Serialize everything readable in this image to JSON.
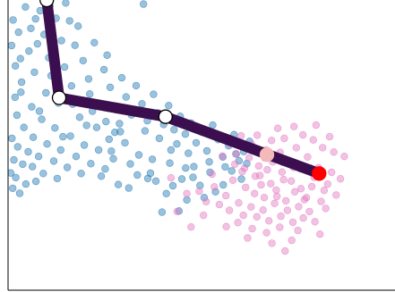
{
  "chart_data": {
    "type": "scatter",
    "title": "",
    "xlabel": "",
    "ylabel": "",
    "grid": false,
    "xlim": [
      0,
      100
    ],
    "ylim": [
      0,
      100
    ],
    "series": [
      {
        "kind": "scatter",
        "color": "#1f77b4",
        "opacity": 0.45,
        "points": [
          [
            1.3,
            93.1
          ],
          [
            2.7,
            88.9
          ],
          [
            0.9,
            84.3
          ],
          [
            4.5,
            97.6
          ],
          [
            3.2,
            79.8
          ],
          [
            5.9,
            90.2
          ],
          [
            7.6,
            84.9
          ],
          [
            8.3,
            96.3
          ],
          [
            6.8,
            75.1
          ],
          [
            3.5,
            71.7
          ],
          [
            1.8,
            66.5
          ],
          [
            9.3,
            88.1
          ],
          [
            10.5,
            80.1
          ],
          [
            12.4,
            93.7
          ],
          [
            11.1,
            73.9
          ],
          [
            13.8,
            86.0
          ],
          [
            9.8,
            68.0
          ],
          [
            6.1,
            63.2
          ],
          [
            2.3,
            60.3
          ],
          [
            14.6,
            76.9
          ],
          [
            15.9,
            92.8
          ],
          [
            17.3,
            84.4
          ],
          [
            16.4,
            70.4
          ],
          [
            19.4,
            79.1
          ],
          [
            18.1,
            91.0
          ],
          [
            20.8,
            72.8
          ],
          [
            13.0,
            64.5
          ],
          [
            8.7,
            58.9
          ],
          [
            4.1,
            56.1
          ],
          [
            1.0,
            52.3
          ],
          [
            22.3,
            85.3
          ],
          [
            21.1,
            67.6
          ],
          [
            24.8,
            76.0
          ],
          [
            23.8,
            63.4
          ],
          [
            26.4,
            69.9
          ],
          [
            25.6,
            81.0
          ],
          [
            27.9,
            62.2
          ],
          [
            18.5,
            59.6
          ],
          [
            12.1,
            55.9
          ],
          [
            6.5,
            52.7
          ],
          [
            2.5,
            49.4
          ],
          [
            29.4,
            73.2
          ],
          [
            30.5,
            66.6
          ],
          [
            31.9,
            60.4
          ],
          [
            33.1,
            70.5
          ],
          [
            28.8,
            57.4
          ],
          [
            34.6,
            64.2
          ],
          [
            22.9,
            56.1
          ],
          [
            16.1,
            53.1
          ],
          [
            10.1,
            50.4
          ],
          [
            5.2,
            47.7
          ],
          [
            1.5,
            44.9
          ],
          [
            36.0,
            58.4
          ],
          [
            37.6,
            67.5
          ],
          [
            38.7,
            61.1
          ],
          [
            35.4,
            54.9
          ],
          [
            40.2,
            57.1
          ],
          [
            41.5,
            63.6
          ],
          [
            26.1,
            52.0
          ],
          [
            19.7,
            50.0
          ],
          [
            13.6,
            48.3
          ],
          [
            7.9,
            46.1
          ],
          [
            3.8,
            43.4
          ],
          [
            0.7,
            40.4
          ],
          [
            42.9,
            55.3
          ],
          [
            44.5,
            59.9
          ],
          [
            45.8,
            53.8
          ],
          [
            39.1,
            52.3
          ],
          [
            47.3,
            57.6
          ],
          [
            48.6,
            50.8
          ],
          [
            30.2,
            50.8
          ],
          [
            23.4,
            48.3
          ],
          [
            17.6,
            46.1
          ],
          [
            11.8,
            44.5
          ],
          [
            6.3,
            42.6
          ],
          [
            2.0,
            38.8
          ],
          [
            50.1,
            54.5
          ],
          [
            51.4,
            48.0
          ],
          [
            52.9,
            56.9
          ],
          [
            46.6,
            47.2
          ],
          [
            54.3,
            51.9
          ],
          [
            55.5,
            45.9
          ],
          [
            33.8,
            46.6
          ],
          [
            27.2,
            45.3
          ],
          [
            21.4,
            43.6
          ],
          [
            15.3,
            42.3
          ],
          [
            9.1,
            40.2
          ],
          [
            4.6,
            36.6
          ],
          [
            1.2,
            35.1
          ],
          [
            57.0,
            49.8
          ],
          [
            58.4,
            53.6
          ],
          [
            59.7,
            44.6
          ],
          [
            56.1,
            42.5
          ],
          [
            60.9,
            47.8
          ],
          [
            37.3,
            45.1
          ],
          [
            31.6,
            43.5
          ],
          [
            25.1,
            41.8
          ],
          [
            18.9,
            40.2
          ],
          [
            12.7,
            38.5
          ],
          [
            7.2,
            37.5
          ],
          [
            3.0,
            33.4
          ],
          [
            62.4,
            51.3
          ],
          [
            42.1,
            48.3
          ],
          [
            36.8,
            40.3
          ],
          [
            14.2,
            52.9
          ],
          [
            20.3,
            56.8
          ],
          [
            8.1,
            61.7
          ],
          [
            3.3,
            68.2
          ],
          [
            5.4,
            82.4
          ],
          [
            7.1,
            93.5
          ],
          [
            10.8,
            98.1
          ],
          [
            14.9,
            99.0
          ],
          [
            1.9,
            77.3
          ],
          [
            16.7,
            64.1
          ],
          [
            25.3,
            58.1
          ],
          [
            29.0,
            54.6
          ],
          [
            43.6,
            50.4
          ],
          [
            48.0,
            42.6
          ],
          [
            52.2,
            40.6
          ],
          [
            44.9,
            38.3
          ],
          [
            38.2,
            37.6
          ],
          [
            28.5,
            36.4
          ],
          [
            57.8,
            41.1
          ],
          [
            49.6,
            36.1
          ],
          [
            40.9,
            33.3
          ],
          [
            33.4,
            39.7
          ],
          [
            46.2,
            31.1
          ],
          [
            53.6,
            33.9
          ],
          [
            60.3,
            38.3
          ],
          [
            41.8,
            43.8
          ],
          [
            39.8,
            26.9
          ],
          [
            36.1,
            38.5
          ],
          [
            27.6,
            54.4
          ],
          [
            21.8,
            61.7
          ],
          [
            35.0,
            98.6
          ],
          [
            45.9,
            42.1
          ],
          [
            31.2,
            35.2
          ],
          [
            26.7,
            47.9
          ],
          [
            24.1,
            39.3
          ],
          [
            52.0,
            44.2
          ],
          [
            58.9,
            47.0
          ],
          [
            47.8,
            38.9
          ],
          [
            42.6,
            36.0
          ],
          [
            55.6,
            36.3
          ],
          [
            50.7,
            31.9
          ],
          [
            61.7,
            43.6
          ],
          [
            44.2,
            27.3
          ]
        ]
      },
      {
        "kind": "scatter",
        "color": "#e377c2",
        "opacity": 0.45,
        "points": [
          [
            55.4,
            46.2
          ],
          [
            58.6,
            43.4
          ],
          [
            62.3,
            45.6
          ],
          [
            60.5,
            40.9
          ],
          [
            64.8,
            42.8
          ],
          [
            66.7,
            48.3
          ],
          [
            68.4,
            44.2
          ],
          [
            70.3,
            47.5
          ],
          [
            72.6,
            43.9
          ],
          [
            74.5,
            49.1
          ],
          [
            65.1,
            39.5
          ],
          [
            67.9,
            36.7
          ],
          [
            70.8,
            40.7
          ],
          [
            73.2,
            37.6
          ],
          [
            75.6,
            41.8
          ],
          [
            77.4,
            45.9
          ],
          [
            79.1,
            38.9
          ],
          [
            61.4,
            35.4
          ],
          [
            63.7,
            33.3
          ],
          [
            66.2,
            31.9
          ],
          [
            69.3,
            34.5
          ],
          [
            71.8,
            30.8
          ],
          [
            74.1,
            33.9
          ],
          [
            76.6,
            31.2
          ],
          [
            78.5,
            35.7
          ],
          [
            80.2,
            42.2
          ],
          [
            81.7,
            34.4
          ],
          [
            58.1,
            37.9
          ],
          [
            56.3,
            32.6
          ],
          [
            59.6,
            30.1
          ],
          [
            62.8,
            28.7
          ],
          [
            65.9,
            27.6
          ],
          [
            68.9,
            29.9
          ],
          [
            72.2,
            27.5
          ],
          [
            75.1,
            28.8
          ],
          [
            77.9,
            27.1
          ],
          [
            80.9,
            30.6
          ],
          [
            82.6,
            36.6
          ],
          [
            83.6,
            40.6
          ],
          [
            54.6,
            29.5
          ],
          [
            57.2,
            27.5
          ],
          [
            60.8,
            25.8
          ],
          [
            64.3,
            25.3
          ],
          [
            67.4,
            23.9
          ],
          [
            70.5,
            25.5
          ],
          [
            73.6,
            23.4
          ],
          [
            76.3,
            24.9
          ],
          [
            79.3,
            23.6
          ],
          [
            82.1,
            28.2
          ],
          [
            84.8,
            32.8
          ],
          [
            85.9,
            38.4
          ],
          [
            53.3,
            35.6
          ],
          [
            51.2,
            30.5
          ],
          [
            49.4,
            34.1
          ],
          [
            63.1,
            21.2
          ],
          [
            66.8,
            19.8
          ],
          [
            70.2,
            21.7
          ],
          [
            74.9,
            20.6
          ],
          [
            73.3,
            17.2
          ],
          [
            80.6,
            19.3
          ],
          [
            56.4,
            21.9
          ],
          [
            59.4,
            23.3
          ],
          [
            61.9,
            18.0
          ],
          [
            68.2,
            16.2
          ],
          [
            71.6,
            13.5
          ],
          [
            47.3,
            21.8
          ],
          [
            43.7,
            27.1
          ],
          [
            50.5,
            25.8
          ],
          [
            46.2,
            33.3
          ],
          [
            42.1,
            38.7
          ],
          [
            52.7,
            40.0
          ],
          [
            57.4,
            50.4
          ],
          [
            62.9,
            50.3
          ],
          [
            68.1,
            51.6
          ],
          [
            71.4,
            52.3
          ],
          [
            76.2,
            53.5
          ],
          [
            78.9,
            51.8
          ],
          [
            81.3,
            49.1
          ],
          [
            84.2,
            47.6
          ],
          [
            86.9,
            46.1
          ],
          [
            69.7,
            55.8
          ],
          [
            73.9,
            56.4
          ],
          [
            79.6,
            56.9
          ],
          [
            83.1,
            52.9
          ],
          [
            64.4,
            53.4
          ],
          [
            60.2,
            53.2
          ],
          [
            55.9,
            52.9
          ],
          [
            77.1,
            31.9
          ],
          [
            65.4,
            36.3
          ],
          [
            71.2,
            38.1
          ],
          [
            67.0,
            41.5
          ],
          [
            63.9,
            39.3
          ],
          [
            75.7,
            35.0
          ],
          [
            69.5,
            32.3
          ],
          [
            73.8,
            42.3
          ],
          [
            78.2,
            42.1
          ],
          [
            66.3,
            45.6
          ],
          [
            70.9,
            44.1
          ],
          [
            61.1,
            42.1
          ],
          [
            59.0,
            46.9
          ]
        ]
      },
      {
        "kind": "path",
        "color": "#3b0f4f",
        "line_width": 12,
        "points": [
          [
            10.0,
            100.0
          ],
          [
            13.2,
            66.3
          ],
          [
            40.7,
            59.8
          ],
          [
            80.4,
            40.2
          ]
        ]
      }
    ],
    "markers": [
      {
        "x": 10.0,
        "y": 100.0,
        "fill": "#ffffff",
        "stroke": "#000000"
      },
      {
        "x": 13.2,
        "y": 66.3,
        "fill": "#ffffff",
        "stroke": "#000000"
      },
      {
        "x": 40.7,
        "y": 59.8,
        "fill": "#ffffff",
        "stroke": "#000000"
      },
      {
        "x": 66.9,
        "y": 46.7,
        "fill": "#f4b9b9",
        "stroke": "#f4b9b9"
      },
      {
        "x": 80.4,
        "y": 40.2,
        "fill": "#ff0000",
        "stroke": "#ff0000"
      }
    ]
  }
}
